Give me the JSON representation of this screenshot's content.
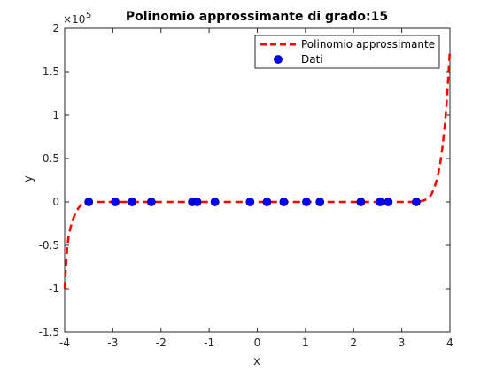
{
  "chart_data": {
    "type": "line",
    "title": "Polinomio approssimante di grado:15",
    "xlabel": "x",
    "ylabel": "y",
    "xlim": [
      -4,
      4
    ],
    "ylim": [
      -150000,
      200000
    ],
    "y_exponent_label": "×10",
    "y_exponent_power": "5",
    "xticks": [
      -4,
      -3,
      -2,
      -1,
      0,
      1,
      2,
      3,
      4
    ],
    "xtick_labels": [
      "-4",
      "-3",
      "-2",
      "-1",
      "0",
      "1",
      "2",
      "3",
      "4"
    ],
    "yticks": [
      -150000,
      -100000,
      -50000,
      0,
      50000,
      100000,
      150000,
      200000
    ],
    "ytick_labels": [
      "-1.5",
      "-1",
      "-0.5",
      "0",
      "0.5",
      "1",
      "1.5",
      "2"
    ],
    "grid": false,
    "legend_position": "top-right",
    "series": [
      {
        "name": "Polinomio approssimante",
        "style": "dashed-line",
        "color": "#ff0000",
        "x": [
          -4.0,
          -3.98,
          -3.95,
          -3.92,
          -3.88,
          -3.84,
          -3.8,
          -3.75,
          -3.7,
          -3.65,
          -3.6,
          -3.55,
          -3.5,
          -3.0,
          -2.0,
          -1.0,
          0.0,
          1.0,
          2.0,
          3.0,
          3.3,
          3.45,
          3.55,
          3.62,
          3.68,
          3.74,
          3.8,
          3.85,
          3.9,
          3.94,
          3.97,
          4.0
        ],
        "y": [
          -100000,
          -80000,
          -55000,
          -40000,
          -30000,
          -22000,
          -16000,
          -10000,
          -6000,
          -3000,
          -1500,
          -500,
          0,
          0,
          0,
          0,
          0,
          0,
          0,
          0,
          0,
          1500,
          4000,
          9000,
          17000,
          28000,
          45000,
          65000,
          92000,
          120000,
          148000,
          175000
        ]
      },
      {
        "name": "Dati",
        "style": "markers",
        "color": "#0000ff",
        "x": [
          -3.5,
          -2.95,
          -2.6,
          -2.2,
          -1.35,
          -1.25,
          -0.88,
          -0.15,
          0.2,
          0.55,
          1.02,
          1.3,
          2.15,
          2.55,
          2.72,
          3.3
        ],
        "y": [
          0,
          0,
          0,
          0,
          0,
          0,
          0,
          0,
          0,
          0,
          0,
          0,
          0,
          0,
          0,
          0
        ]
      }
    ]
  }
}
